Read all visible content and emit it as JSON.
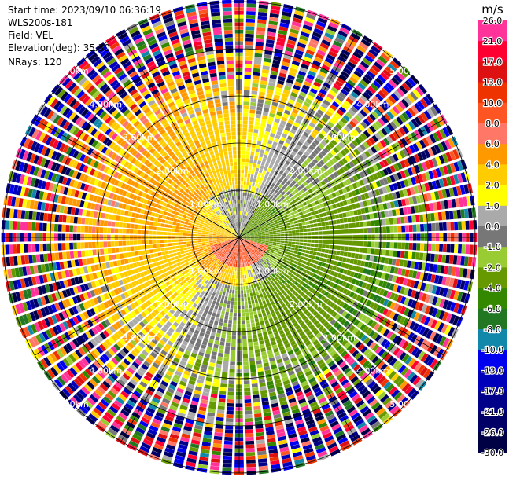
{
  "info": {
    "start_time": "Start time: 2023/09/10 06:36:19",
    "instrument": "WLS200s-181",
    "field": "Field: VEL",
    "elevation": "Elevation(deg): 35.30",
    "nrays": "NRays: 120"
  },
  "colorbar": {
    "unit": "m/s",
    "ticks": [
      "26.0",
      "21.0",
      "17.0",
      "13.0",
      "10.0",
      "8.0",
      "6.0",
      "4.0",
      "2.0",
      "1.0",
      "0.0",
      "-1.0",
      "-2.0",
      "-4.0",
      "-6.0",
      "-8.0",
      "-10.0",
      "-13.0",
      "-17.0",
      "-21.0",
      "-26.0",
      "-30.0"
    ],
    "colors": [
      "#ff3399",
      "#ff0033",
      "#dd1111",
      "#ee3300",
      "#ff5522",
      "#ff7766",
      "#ff9900",
      "#ffcc00",
      "#ffff00",
      "#aaaaaa",
      "#777777",
      "#99cc33",
      "#669900",
      "#338800",
      "#227722",
      "#1188aa",
      "#0000ee",
      "#0000bb",
      "#000088",
      "#000066",
      "#000044"
    ]
  },
  "chart_data": {
    "type": "ppi",
    "field": "VEL",
    "units": "m/s",
    "elevation_deg": 35.3,
    "n_rays": 120,
    "range_rings_km": [
      1,
      2,
      3,
      4,
      5
    ],
    "ring_labels": [
      "1.00km",
      "2.00km",
      "3.00km",
      "4.00km",
      "5.00km"
    ],
    "spoke_angles_deg": [
      0,
      30,
      60,
      90,
      120,
      150,
      180,
      210,
      240,
      270,
      300,
      330
    ],
    "velocity_range": [
      -30,
      26
    ]
  }
}
